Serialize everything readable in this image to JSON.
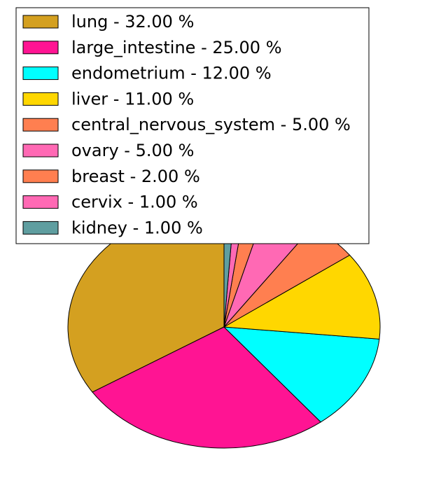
{
  "chart_data": {
    "type": "pie",
    "title": "",
    "legend_position": "top",
    "slices": [
      {
        "label": "lung",
        "value": 32.0,
        "legend": "lung - 32.00 %",
        "color": "#D4A020"
      },
      {
        "label": "large_intestine",
        "value": 25.0,
        "legend": "large_intestine - 25.00 %",
        "color": "#FF1493"
      },
      {
        "label": "endometrium",
        "value": 12.0,
        "legend": "endometrium - 12.00 %",
        "color": "#00FFFF"
      },
      {
        "label": "liver",
        "value": 11.0,
        "legend": "liver - 11.00 %",
        "color": "#FFD700"
      },
      {
        "label": "central_nervous_system",
        "value": 5.0,
        "legend": "central_nervous_system - 5.00 %",
        "color": "#FF7F50"
      },
      {
        "label": "ovary",
        "value": 5.0,
        "legend": "ovary - 5.00 %",
        "color": "#FF69B4"
      },
      {
        "label": "breast",
        "value": 2.0,
        "legend": "breast - 2.00 %",
        "color": "#FF7F50"
      },
      {
        "label": "cervix",
        "value": 1.0,
        "legend": "cervix - 1.00 %",
        "color": "#FF69B4"
      },
      {
        "label": "kidney",
        "value": 1.0,
        "legend": "kidney - 1.00 %",
        "color": "#5F9EA0"
      }
    ]
  }
}
